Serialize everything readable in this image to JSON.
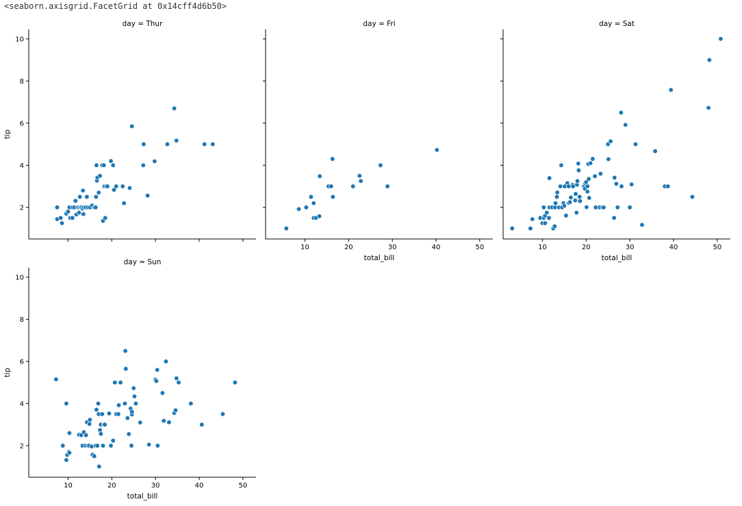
{
  "repr_text": "<seaborn.axisgrid.FacetGrid at 0x14cff4d6b50>",
  "chart_data": {
    "type": "scatter",
    "x_field": "total_bill",
    "y_field": "tip",
    "xlabel": "total_bill",
    "ylabel": "tip",
    "xlim": [
      1.0,
      53.0
    ],
    "ylim": [
      0.5,
      10.45
    ],
    "xticks": [
      10,
      20,
      30,
      40,
      50
    ],
    "yticks": [
      2,
      4,
      6,
      8,
      10
    ],
    "point_color": "#1f77b4",
    "facets": [
      {
        "title": "day = Thur",
        "points": [
          [
            7.5,
            2.0
          ],
          [
            7.5,
            1.44
          ],
          [
            8.3,
            1.5
          ],
          [
            8.6,
            1.25
          ],
          [
            9.6,
            1.7
          ],
          [
            10.0,
            1.8
          ],
          [
            10.3,
            2.0
          ],
          [
            10.5,
            1.5
          ],
          [
            11.0,
            2.0
          ],
          [
            11.0,
            1.5
          ],
          [
            11.4,
            2.0
          ],
          [
            11.7,
            2.31
          ],
          [
            11.9,
            1.66
          ],
          [
            12.2,
            2.0
          ],
          [
            12.5,
            2.0
          ],
          [
            12.5,
            1.75
          ],
          [
            12.7,
            2.5
          ],
          [
            12.9,
            2.0
          ],
          [
            13.0,
            2.0
          ],
          [
            13.3,
            1.94
          ],
          [
            13.4,
            2.8
          ],
          [
            13.5,
            1.68
          ],
          [
            13.6,
            2.0
          ],
          [
            14.0,
            2.0
          ],
          [
            14.3,
            2.5
          ],
          [
            14.5,
            2.0
          ],
          [
            15.0,
            2.0
          ],
          [
            15.5,
            2.09
          ],
          [
            16.0,
            2.0
          ],
          [
            16.3,
            2.0
          ],
          [
            16.4,
            2.5
          ],
          [
            16.5,
            4.0
          ],
          [
            16.6,
            3.27
          ],
          [
            16.7,
            3.41
          ],
          [
            17.0,
            2.7
          ],
          [
            17.3,
            3.5
          ],
          [
            17.8,
            4.0
          ],
          [
            18.0,
            1.36
          ],
          [
            18.2,
            4.0
          ],
          [
            18.3,
            3.0
          ],
          [
            18.5,
            1.5
          ],
          [
            18.7,
            3.0
          ],
          [
            19.0,
            3.0
          ],
          [
            19.8,
            4.2
          ],
          [
            20.3,
            4.0
          ],
          [
            20.5,
            2.83
          ],
          [
            21.0,
            3.0
          ],
          [
            22.5,
            3.0
          ],
          [
            22.8,
            2.2
          ],
          [
            24.1,
            2.92
          ],
          [
            24.6,
            5.85
          ],
          [
            27.3,
            5.0
          ],
          [
            27.2,
            4.0
          ],
          [
            28.2,
            2.56
          ],
          [
            29.8,
            4.19
          ],
          [
            32.7,
            5.0
          ],
          [
            34.3,
            6.7
          ],
          [
            34.8,
            5.17
          ],
          [
            41.2,
            5.0
          ],
          [
            43.1,
            5.0
          ]
        ]
      },
      {
        "title": "day = Fri",
        "points": [
          [
            5.75,
            1.0
          ],
          [
            8.6,
            1.92
          ],
          [
            10.3,
            2.0
          ],
          [
            11.4,
            2.5
          ],
          [
            12.0,
            1.5
          ],
          [
            12.0,
            2.2
          ],
          [
            12.5,
            1.5
          ],
          [
            13.3,
            1.58
          ],
          [
            13.4,
            3.48
          ],
          [
            15.4,
            3.0
          ],
          [
            16.0,
            3.0
          ],
          [
            16.3,
            4.3
          ],
          [
            16.4,
            2.5
          ],
          [
            21.0,
            3.0
          ],
          [
            22.5,
            3.5
          ],
          [
            22.8,
            3.25
          ],
          [
            27.3,
            4.0
          ],
          [
            28.9,
            3.0
          ],
          [
            40.2,
            4.73
          ]
        ]
      },
      {
        "title": "day = Sat",
        "points": [
          [
            3.07,
            1.0
          ],
          [
            7.25,
            1.0
          ],
          [
            7.7,
            1.44
          ],
          [
            9.5,
            1.5
          ],
          [
            10.0,
            1.25
          ],
          [
            10.3,
            1.5
          ],
          [
            10.6,
            1.25
          ],
          [
            10.3,
            2.0
          ],
          [
            10.6,
            1.61
          ],
          [
            11.0,
            1.75
          ],
          [
            11.5,
            1.5
          ],
          [
            11.6,
            3.39
          ],
          [
            11.6,
            2.0
          ],
          [
            12.2,
            2.0
          ],
          [
            12.5,
            1.0
          ],
          [
            12.8,
            1.1
          ],
          [
            12.9,
            2.0
          ],
          [
            13.0,
            2.2
          ],
          [
            13.3,
            2.5
          ],
          [
            13.4,
            2.71
          ],
          [
            13.8,
            2.0
          ],
          [
            14.1,
            3.0
          ],
          [
            14.3,
            4.0
          ],
          [
            14.5,
            2.0
          ],
          [
            14.8,
            2.2
          ],
          [
            15.0,
            2.07
          ],
          [
            15.1,
            3.0
          ],
          [
            15.4,
            1.61
          ],
          [
            15.7,
            3.15
          ],
          [
            16.0,
            2.21
          ],
          [
            16.0,
            3.0
          ],
          [
            16.3,
            2.25
          ],
          [
            16.5,
            2.47
          ],
          [
            16.9,
            3.07
          ],
          [
            17.0,
            3.0
          ],
          [
            17.5,
            2.33
          ],
          [
            17.6,
            2.64
          ],
          [
            17.8,
            1.75
          ],
          [
            17.9,
            3.08
          ],
          [
            18.0,
            3.25
          ],
          [
            18.2,
            4.08
          ],
          [
            18.3,
            3.76
          ],
          [
            18.5,
            2.5
          ],
          [
            18.6,
            2.3
          ],
          [
            19.5,
            3.0
          ],
          [
            19.7,
            2.89
          ],
          [
            19.8,
            3.14
          ],
          [
            20.0,
            3.2
          ],
          [
            20.1,
            2.01
          ],
          [
            20.3,
            2.75
          ],
          [
            20.3,
            3.0
          ],
          [
            20.5,
            4.06
          ],
          [
            20.6,
            3.35
          ],
          [
            20.7,
            2.45
          ],
          [
            21.0,
            4.1
          ],
          [
            21.5,
            4.3
          ],
          [
            22.0,
            3.48
          ],
          [
            22.2,
            2.0
          ],
          [
            23.1,
            2.0
          ],
          [
            23.3,
            3.6
          ],
          [
            23.7,
            2.0
          ],
          [
            24.0,
            2.0
          ],
          [
            25.0,
            5.0
          ],
          [
            25.1,
            4.29
          ],
          [
            25.6,
            5.14
          ],
          [
            26.4,
            1.5
          ],
          [
            26.5,
            3.41
          ],
          [
            26.9,
            3.12
          ],
          [
            27.2,
            2.0
          ],
          [
            28.0,
            6.5
          ],
          [
            28.1,
            3.0
          ],
          [
            29.0,
            5.92
          ],
          [
            30.0,
            2.0
          ],
          [
            30.4,
            3.09
          ],
          [
            31.3,
            5.0
          ],
          [
            32.8,
            1.17
          ],
          [
            35.8,
            4.67
          ],
          [
            38.0,
            3.0
          ],
          [
            38.7,
            3.0
          ],
          [
            39.4,
            7.58
          ],
          [
            44.3,
            2.5
          ],
          [
            48.2,
            9.0
          ],
          [
            48.0,
            6.73
          ],
          [
            50.8,
            10.0
          ]
        ]
      },
      {
        "title": "day = Sun",
        "points": [
          [
            7.25,
            5.15
          ],
          [
            8.8,
            2.0
          ],
          [
            9.6,
            4.0
          ],
          [
            9.6,
            1.32
          ],
          [
            9.8,
            1.56
          ],
          [
            10.2,
            1.71
          ],
          [
            10.3,
            1.66
          ],
          [
            10.3,
            2.6
          ],
          [
            12.5,
            2.52
          ],
          [
            13.0,
            2.5
          ],
          [
            13.3,
            2.0
          ],
          [
            13.6,
            2.64
          ],
          [
            14.0,
            2.0
          ],
          [
            14.1,
            2.5
          ],
          [
            14.3,
            3.11
          ],
          [
            14.5,
            2.0
          ],
          [
            14.8,
            2.0
          ],
          [
            14.9,
            3.03
          ],
          [
            15.0,
            3.23
          ],
          [
            15.4,
            1.96
          ],
          [
            15.6,
            1.57
          ],
          [
            16.0,
            1.5
          ],
          [
            16.3,
            2.0
          ],
          [
            16.5,
            3.71
          ],
          [
            16.7,
            2.0
          ],
          [
            16.9,
            4.0
          ],
          [
            17.0,
            3.5
          ],
          [
            17.1,
            1.01
          ],
          [
            17.3,
            2.74
          ],
          [
            17.5,
            2.56
          ],
          [
            17.5,
            3.0
          ],
          [
            17.8,
            3.5
          ],
          [
            18.0,
            2.0
          ],
          [
            18.2,
            3.0
          ],
          [
            18.4,
            3.0
          ],
          [
            19.4,
            3.53
          ],
          [
            19.8,
            2.0
          ],
          [
            20.3,
            2.24
          ],
          [
            20.7,
            5.0
          ],
          [
            21.0,
            3.5
          ],
          [
            21.5,
            3.5
          ],
          [
            21.6,
            3.92
          ],
          [
            22.0,
            5.0
          ],
          [
            23.0,
            4.0
          ],
          [
            23.1,
            6.5
          ],
          [
            23.2,
            5.65
          ],
          [
            23.6,
            3.31
          ],
          [
            23.9,
            2.55
          ],
          [
            24.3,
            3.76
          ],
          [
            24.6,
            3.48
          ],
          [
            24.5,
            2.0
          ],
          [
            24.6,
            3.61
          ],
          [
            25.0,
            4.73
          ],
          [
            25.2,
            4.34
          ],
          [
            25.5,
            4.0
          ],
          [
            26.5,
            3.1
          ],
          [
            28.5,
            2.05
          ],
          [
            30.0,
            5.14
          ],
          [
            30.2,
            5.07
          ],
          [
            30.4,
            5.6
          ],
          [
            30.5,
            2.0
          ],
          [
            31.6,
            4.5
          ],
          [
            31.9,
            3.18
          ],
          [
            32.4,
            6.0
          ],
          [
            33.1,
            3.11
          ],
          [
            34.3,
            3.55
          ],
          [
            34.6,
            3.68
          ],
          [
            34.8,
            5.2
          ],
          [
            35.3,
            5.0
          ],
          [
            38.1,
            4.0
          ],
          [
            40.6,
            3.0
          ],
          [
            45.4,
            3.5
          ],
          [
            48.2,
            5.0
          ]
        ]
      }
    ]
  }
}
